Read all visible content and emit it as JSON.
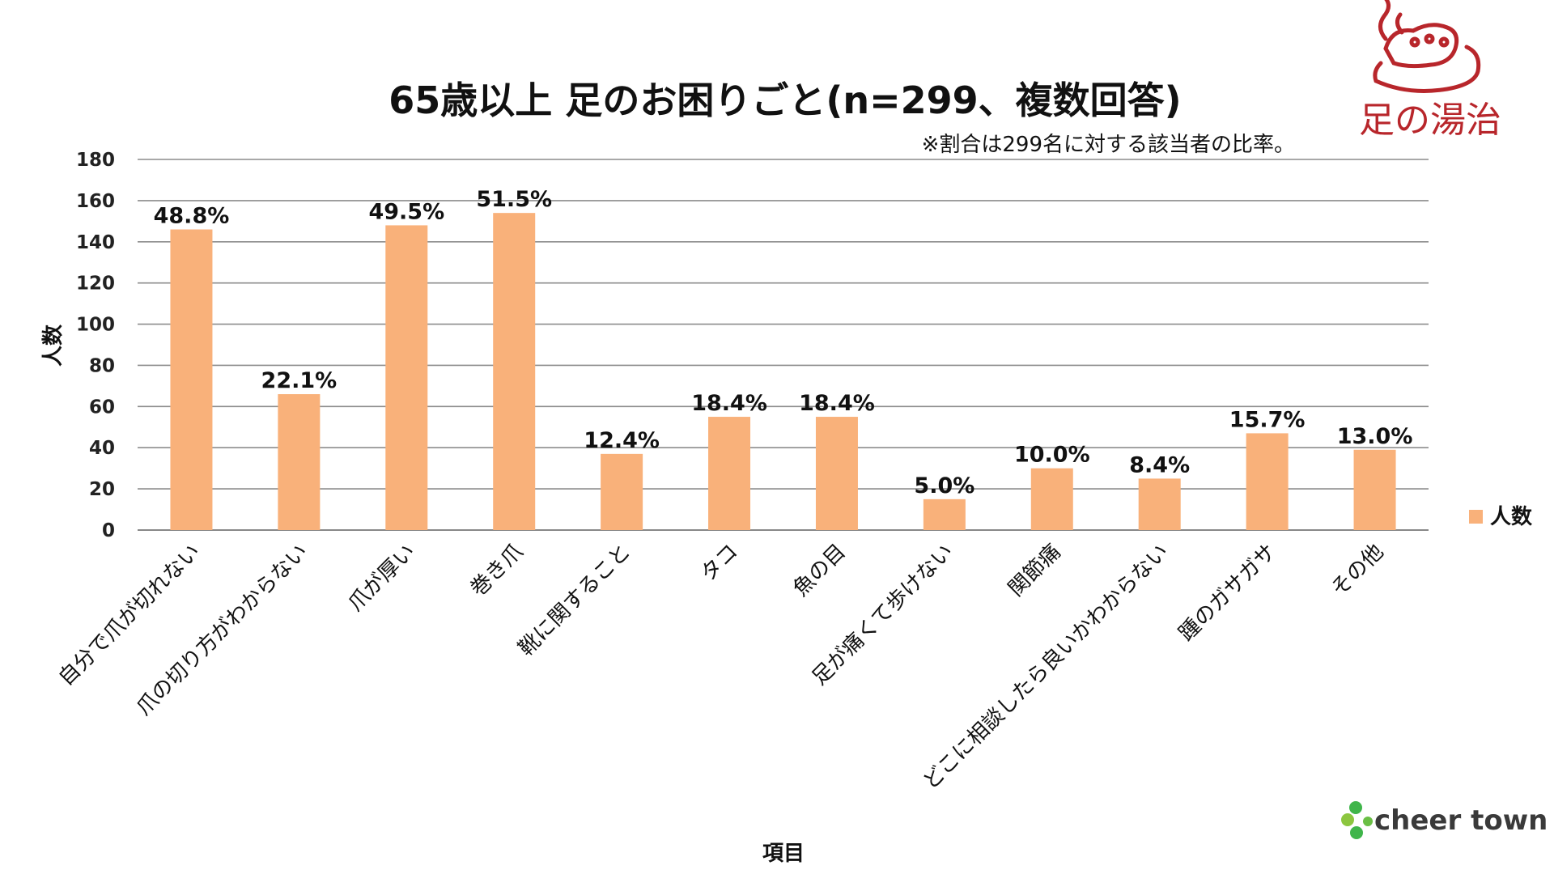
{
  "chart_data": {
    "type": "bar",
    "title": "65歳以上 足のお困りごと(n=299、複数回答)",
    "subtitle": "※割合は299名に対する該当者の比率。",
    "xlabel": "項目",
    "ylabel": "人数",
    "ylim": [
      0,
      180
    ],
    "yticks": [
      0,
      20,
      40,
      60,
      80,
      100,
      120,
      140,
      160,
      180
    ],
    "grid": true,
    "legend_position": "right",
    "categories": [
      "自分で爪が切れない",
      "爪の切り方がわからない",
      "爪が厚い",
      "巻き爪",
      "靴に関すること",
      "タコ",
      "魚の目",
      "足が痛くて歩けない",
      "関節痛",
      "どこに相談したら良いかわからない",
      "踵のガサガサ",
      "その他"
    ],
    "series": [
      {
        "name": "人数",
        "color": "#f9b17a",
        "values": [
          146,
          66,
          148,
          154,
          37,
          55,
          55,
          15,
          30,
          25,
          47,
          39
        ],
        "labels": [
          "48.8%",
          "22.1%",
          "49.5%",
          "51.5%",
          "12.4%",
          "18.4%",
          "18.4%",
          "5.0%",
          "10.0%",
          "8.4%",
          "15.7%",
          "13.0%"
        ]
      }
    ]
  },
  "logos": {
    "top_right": "足の湯治",
    "bottom_right": "cheer town",
    "top_right_color": "#b8262b",
    "bottom_right_leaf_color": "#3fb54a"
  }
}
